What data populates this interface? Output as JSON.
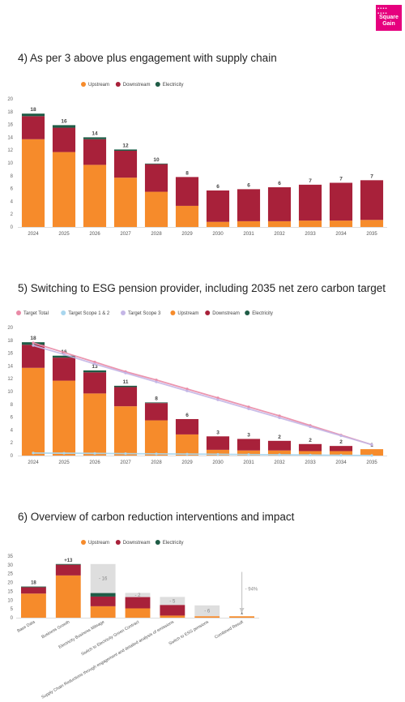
{
  "logo": {
    "line1": "Square",
    "line2": "Gain"
  },
  "sections": {
    "s4": {
      "heading": "4)   As per 3 above plus engagement with supply chain"
    },
    "s5": {
      "heading": "5)   Switching to ESG pension provider, including 2035 net zero carbon target"
    },
    "s6": {
      "heading": "6)   Overview of carbon reduction interventions and impact"
    }
  },
  "colors": {
    "upstream": "#f68b2b",
    "downstream": "#a8213a",
    "electricity": "#1f5c46",
    "target_total": "#e98aa6",
    "target_s12": "#a9d6ee",
    "target_s3": "#c4b6e6",
    "ghost": "#dedede"
  },
  "chart_data": [
    {
      "id": "chart4",
      "type": "bar",
      "stacked": true,
      "categories": [
        "2024",
        "2025",
        "2026",
        "2027",
        "2028",
        "2029",
        "2030",
        "2031",
        "2032",
        "2033",
        "2034",
        "2035"
      ],
      "series": [
        {
          "name": "Upstream",
          "values": [
            13.7,
            11.7,
            9.7,
            7.7,
            5.5,
            3.3,
            0.8,
            0.9,
            0.9,
            1.0,
            1.0,
            1.1
          ]
        },
        {
          "name": "Downstream",
          "values": [
            3.6,
            3.8,
            4.0,
            4.2,
            4.3,
            4.5,
            4.9,
            5.0,
            5.3,
            5.6,
            5.9,
            6.2
          ]
        },
        {
          "name": "Electricity",
          "values": [
            0.4,
            0.4,
            0.3,
            0.2,
            0.1,
            0.0,
            0.0,
            0.0,
            0.0,
            0.0,
            0.0,
            0.0
          ]
        }
      ],
      "totals": [
        "18",
        "16",
        "14",
        "12",
        "10",
        "8",
        "6",
        "6",
        "6",
        "7",
        "7",
        "7"
      ],
      "yticks": [
        "0",
        "2",
        "4",
        "6",
        "8",
        "10",
        "12",
        "14",
        "16",
        "18",
        "20"
      ],
      "ylim": [
        0,
        20
      ],
      "legend": [
        "Upstream",
        "Downstream",
        "Electricity"
      ],
      "legend_position": "top-center",
      "grid": false
    },
    {
      "id": "chart5",
      "type": "bar",
      "stacked": true,
      "categories": [
        "2024",
        "2025",
        "2026",
        "2027",
        "2028",
        "2029",
        "2030",
        "2031",
        "2032",
        "2033",
        "2034",
        "2035"
      ],
      "series": [
        {
          "name": "Upstream",
          "values": [
            13.7,
            11.7,
            9.7,
            7.7,
            5.5,
            3.3,
            0.9,
            0.8,
            0.8,
            0.7,
            0.7,
            1.0
          ]
        },
        {
          "name": "Downstream",
          "values": [
            3.6,
            3.6,
            3.3,
            3.0,
            2.7,
            2.4,
            2.1,
            1.8,
            1.5,
            1.1,
            0.8,
            0.0
          ]
        },
        {
          "name": "Electricity",
          "values": [
            0.4,
            0.3,
            0.3,
            0.2,
            0.1,
            0.0,
            0.0,
            0.0,
            0.0,
            0.0,
            0.0,
            0.0
          ]
        }
      ],
      "lines": [
        {
          "name": "Target Total",
          "values": [
            17.6,
            16.1,
            14.6,
            13.1,
            11.8,
            10.4,
            9.0,
            7.6,
            6.2,
            4.7,
            3.2,
            1.7
          ]
        },
        {
          "name": "Target Scope 1 & 2",
          "values": [
            0.4,
            0.37,
            0.34,
            0.3,
            0.27,
            0.23,
            0.2,
            0.16,
            0.13,
            0.09,
            0.05,
            0.02
          ]
        },
        {
          "name": "Target Scope 3",
          "values": [
            17.2,
            15.8,
            14.3,
            12.9,
            11.5,
            10.1,
            8.7,
            7.3,
            5.9,
            4.5,
            3.1,
            1.7
          ]
        }
      ],
      "totals": [
        "18",
        "16",
        "13",
        "11",
        "8",
        "6",
        "3",
        "3",
        "2",
        "2",
        "2",
        "1"
      ],
      "yticks": [
        "0",
        "2",
        "4",
        "6",
        "8",
        "10",
        "12",
        "14",
        "16",
        "18",
        "20"
      ],
      "ylim": [
        0,
        20
      ],
      "legend": [
        "Target Total",
        "Target Scope 1 & 2",
        "Target Scope 3",
        "Upstream",
        "Downstream",
        "Electricity"
      ],
      "legend_position": "top-left",
      "grid": false
    },
    {
      "id": "chart6",
      "type": "bar",
      "stacked": true,
      "waterfall": true,
      "categories": [
        "Base Data",
        "Business Growth",
        "Electricity Business Mileage",
        "Switch to Electricity Green Contract",
        "Supply Chain Reductions through engagement and detailed analysis of emissions",
        "Switch to ESG pensions",
        "Combined Result"
      ],
      "series": [
        {
          "name": "Upstream",
          "values": [
            13.7,
            24.0,
            6.5,
            5.3,
            1.2,
            0.8,
            0.8
          ]
        },
        {
          "name": "Downstream",
          "values": [
            3.6,
            6.1,
            5.5,
            6.4,
            6.0,
            0.0,
            0.0
          ]
        },
        {
          "name": "Electricity",
          "values": [
            0.4,
            0.4,
            2.0,
            0.0,
            0.0,
            0.0,
            0.0
          ]
        }
      ],
      "ghost_tops": [
        null,
        null,
        30.5,
        14.1,
        11.8,
        7.0,
        null
      ],
      "value_labels": [
        "18",
        "+13",
        "- 16",
        "- 2",
        "- 5",
        "- 6",
        "1"
      ],
      "reduction_label": "- 94%",
      "yticks": [
        "0",
        "5",
        "10",
        "15",
        "20",
        "25",
        "30",
        "35"
      ],
      "ylim": [
        0,
        35
      ],
      "legend": [
        "Upstream",
        "Downstream",
        "Electricity"
      ],
      "legend_position": "top-center",
      "grid": false
    }
  ]
}
